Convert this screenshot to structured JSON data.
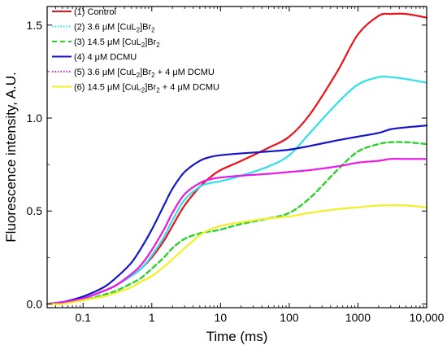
{
  "chart_data": {
    "type": "line",
    "title": "",
    "xlabel": "Time (ms)",
    "ylabel": "Fluorescence intensity, A.U.",
    "x_scale": "log",
    "xlim": [
      0.03,
      10000
    ],
    "ylim": [
      -0.02,
      1.6
    ],
    "x_ticks": [
      {
        "value": 0.1,
        "label": "0.1"
      },
      {
        "value": 1,
        "label": "1"
      },
      {
        "value": 10,
        "label": "10"
      },
      {
        "value": 100,
        "label": "100"
      },
      {
        "value": 1000,
        "label": "1000"
      },
      {
        "value": 10000,
        "label": "10,000"
      }
    ],
    "y_ticks": [
      {
        "value": 0,
        "label": "0.0"
      },
      {
        "value": 0.5,
        "label": "0.5"
      },
      {
        "value": 1.0,
        "label": "1.0"
      },
      {
        "value": 1.5,
        "label": "1.5"
      }
    ],
    "grid": false,
    "legend_position": "top-left",
    "series": [
      {
        "id": "control",
        "name": "(1) Control",
        "legend": {
          "num": "(1)",
          "pre": "Control",
          "sub": "",
          "post": ""
        },
        "color": "#e8141b",
        "style": "solid",
        "x": [
          0.03,
          0.05,
          0.1,
          0.2,
          0.3,
          0.5,
          0.7,
          1,
          1.5,
          2,
          3,
          5,
          7,
          10,
          20,
          50,
          100,
          200,
          500,
          1000,
          2000,
          3000,
          5000,
          10000
        ],
        "y": [
          0.0,
          0.01,
          0.03,
          0.07,
          0.1,
          0.15,
          0.19,
          0.25,
          0.34,
          0.42,
          0.53,
          0.63,
          0.68,
          0.72,
          0.77,
          0.84,
          0.9,
          1.02,
          1.25,
          1.45,
          1.55,
          1.56,
          1.56,
          1.54
        ]
      },
      {
        "id": "cu36",
        "name": "(2) 3.6 μM [CuL2]Br2",
        "legend": {
          "num": "(2)",
          "pre": "3.6 μM [CuL",
          "sub": "2",
          "post": "]Br",
          "sub2": "2",
          "post2": ""
        },
        "color": "#33e0ea",
        "style": "dotted",
        "x": [
          0.03,
          0.05,
          0.1,
          0.2,
          0.3,
          0.5,
          0.7,
          1,
          1.5,
          2,
          3,
          5,
          7,
          10,
          20,
          50,
          100,
          200,
          500,
          1000,
          2000,
          3000,
          5000,
          10000
        ],
        "y": [
          0.0,
          0.01,
          0.03,
          0.07,
          0.1,
          0.15,
          0.19,
          0.26,
          0.36,
          0.45,
          0.56,
          0.63,
          0.65,
          0.66,
          0.69,
          0.74,
          0.8,
          0.92,
          1.08,
          1.18,
          1.22,
          1.22,
          1.21,
          1.19
        ]
      },
      {
        "id": "cu145",
        "name": "(3) 14.5 μM [CuL2]Br2",
        "legend": {
          "num": "(3)",
          "pre": "14.5 μM [CuL",
          "sub": "2",
          "post": "]Br",
          "sub2": "2",
          "post2": ""
        },
        "color": "#2cd12c",
        "style": "dashed",
        "x": [
          0.03,
          0.05,
          0.1,
          0.2,
          0.3,
          0.5,
          0.7,
          1,
          1.5,
          2,
          3,
          5,
          7,
          10,
          20,
          50,
          100,
          200,
          500,
          1000,
          2000,
          3000,
          5000,
          10000
        ],
        "y": [
          0.0,
          0.01,
          0.02,
          0.05,
          0.07,
          0.11,
          0.14,
          0.19,
          0.25,
          0.3,
          0.35,
          0.38,
          0.39,
          0.4,
          0.43,
          0.46,
          0.49,
          0.57,
          0.72,
          0.82,
          0.86,
          0.87,
          0.87,
          0.86
        ]
      },
      {
        "id": "dcmu",
        "name": "(4) 4 μM DCMU",
        "legend": {
          "num": "(4)",
          "pre": "4 μM DCMU",
          "sub": "",
          "post": ""
        },
        "color": "#1515c8",
        "style": "solid",
        "x": [
          0.03,
          0.05,
          0.1,
          0.2,
          0.3,
          0.5,
          0.7,
          1,
          1.5,
          2,
          3,
          5,
          7,
          10,
          20,
          50,
          100,
          200,
          500,
          1000,
          2000,
          3000,
          5000,
          10000
        ],
        "y": [
          0.0,
          0.01,
          0.04,
          0.09,
          0.14,
          0.22,
          0.3,
          0.4,
          0.53,
          0.62,
          0.71,
          0.77,
          0.79,
          0.8,
          0.81,
          0.82,
          0.83,
          0.85,
          0.88,
          0.9,
          0.92,
          0.94,
          0.95,
          0.96
        ]
      },
      {
        "id": "cu36dcmu",
        "name": "(5) 3.6 μM [CuL2]Br2 + 4 μM DCMU",
        "legend": {
          "num": "(5)",
          "pre": "3.6 μM [CuL",
          "sub": "2",
          "post": "]Br",
          "sub2": "2",
          "post2": " + 4 μM DCMU"
        },
        "color": "#e61be6",
        "style": "dotted",
        "x": [
          0.03,
          0.05,
          0.1,
          0.2,
          0.3,
          0.5,
          0.7,
          1,
          1.5,
          2,
          3,
          5,
          7,
          10,
          20,
          50,
          100,
          200,
          500,
          1000,
          2000,
          3000,
          5000,
          10000
        ],
        "y": [
          0.0,
          0.01,
          0.03,
          0.07,
          0.1,
          0.16,
          0.21,
          0.29,
          0.4,
          0.49,
          0.59,
          0.65,
          0.67,
          0.68,
          0.69,
          0.7,
          0.71,
          0.72,
          0.74,
          0.76,
          0.77,
          0.78,
          0.78,
          0.78
        ]
      },
      {
        "id": "cu145dcmu",
        "name": "(6) 14.5 μM [CuL2]Br2 + 4 μM DCMU",
        "legend": {
          "num": "(6)",
          "pre": "14.5 μM [CuL",
          "sub": "2",
          "post": "]Br",
          "sub2": "2",
          "post2": " + 4 μM DCMU"
        },
        "color": "#f2ef28",
        "style": "solid",
        "x": [
          0.03,
          0.05,
          0.1,
          0.2,
          0.3,
          0.5,
          0.7,
          1,
          1.5,
          2,
          3,
          5,
          7,
          10,
          20,
          50,
          100,
          200,
          500,
          1000,
          2000,
          3000,
          5000,
          10000
        ],
        "y": [
          0.0,
          0.0,
          0.02,
          0.04,
          0.06,
          0.09,
          0.12,
          0.15,
          0.2,
          0.24,
          0.3,
          0.37,
          0.4,
          0.42,
          0.44,
          0.46,
          0.47,
          0.49,
          0.51,
          0.52,
          0.53,
          0.53,
          0.53,
          0.52
        ]
      }
    ]
  }
}
